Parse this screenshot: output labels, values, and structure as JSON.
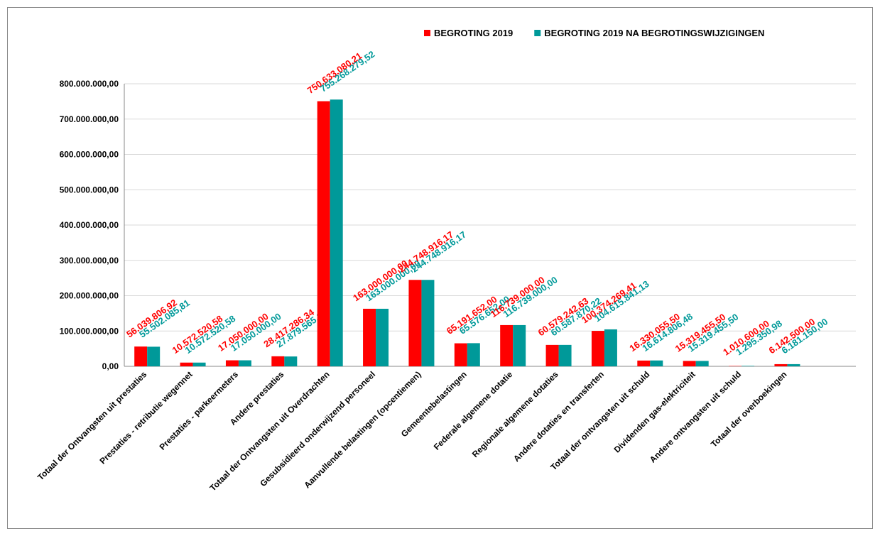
{
  "chart_data": {
    "type": "bar",
    "categories": [
      "Totaal der Ontvangsten uit prestaties",
      "Prestaties - retributie wegennet",
      "Prestaties - parkeermeters",
      "Andere prestaties",
      "Totaal der Ontvangsten uit Overdrachten",
      "Gesubsidieerd onderwijzend personeel",
      "Aanvullende belastingen (opcentiemen)",
      "Gemeentebelastingen",
      "Federale algemene dotatie",
      "Regionale algemene dotaties",
      "Andere dotaties en transferten",
      "Totaal der ontvangsten uit schuld",
      "Dividenden gas-elektriciteit",
      "Andere ontvangsten uit schuld",
      "Totaal der overboekingen",
      null
    ],
    "series": [
      {
        "name": "BEGROTING 2019",
        "color": "#ff0000",
        "values": [
          56039806.92,
          10572520.58,
          17050000.0,
          28417286.34,
          750633080.21,
          163000000.0,
          244748916.17,
          65191652.0,
          116739000.0,
          60579242.63,
          100374269.41,
          16330055.5,
          15319455.5,
          1010600.0,
          6142500.0,
          null
        ],
        "value_labels": [
          "56.039.806,92",
          "10.572.520,58",
          "17.050.000,00",
          "28.417.286,34",
          "750.633.080,21",
          "163.000.000,00",
          "244.748.916,17",
          "65.191.652,00",
          "116.739.000,00",
          "60.579.242,63",
          "100.374.269,41",
          "16.330.055,50",
          "15.319.455,50",
          "1.010.600,00",
          "6.142.500,00",
          null
        ]
      },
      {
        "name": "BEGROTING 2019 NA BEGROTINGSWIJZIGINGEN",
        "color": "#009999",
        "values": [
          55502085.81,
          10572520.58,
          17050000.0,
          27879565.18,
          755268279.52,
          163000000.0,
          244748916.17,
          65576652.0,
          116739000.0,
          60587870.22,
          104615841.13,
          16614806.48,
          15319455.5,
          1295350.98,
          6181150.0,
          null
        ],
        "value_labels": [
          "55.502.085,81",
          "10.572.520,58",
          "17.050.000,00",
          "27.879.565,18",
          "755.268.279,52",
          "163.000.000,00",
          "244.748.916,17",
          "65.576.652,00",
          "116.739.000,00",
          "60.587.870,22",
          "104.615.841,13",
          "16.614.806,48",
          "15.319.455,50",
          "1.295.350,98",
          "6.181.150,00",
          null
        ]
      }
    ],
    "ylim": [
      0,
      800000000
    ],
    "yticks": [
      {
        "value": 0,
        "label": "0,00"
      },
      {
        "value": 100000000,
        "label": "100.000.000,00"
      },
      {
        "value": 200000000,
        "label": "200.000.000,00"
      },
      {
        "value": 300000000,
        "label": "300.000.000,00"
      },
      {
        "value": 400000000,
        "label": "400.000.000,00"
      },
      {
        "value": 500000000,
        "label": "500.000.000,00"
      },
      {
        "value": 600000000,
        "label": "600.000.000,00"
      },
      {
        "value": 700000000,
        "label": "700.000.000,00"
      },
      {
        "value": 800000000,
        "label": "800.000.000,00"
      }
    ],
    "grid": true,
    "legend": "top-right"
  }
}
